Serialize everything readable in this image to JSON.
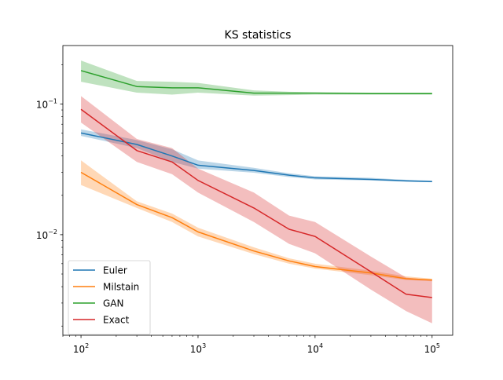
{
  "chart_data": {
    "type": "line",
    "title": "KS statistics",
    "xlabel": "",
    "ylabel": "",
    "xscale": "log",
    "yscale": "log",
    "xlim": [
      70,
      150000
    ],
    "ylim": [
      0.0017,
      0.28
    ],
    "grid": false,
    "legend_position": "lower-left",
    "x_ticks": [
      {
        "value": 100,
        "base": "10",
        "exp": "2"
      },
      {
        "value": 1000,
        "base": "10",
        "exp": "3"
      },
      {
        "value": 10000,
        "base": "10",
        "exp": "4"
      },
      {
        "value": 100000,
        "base": "10",
        "exp": "5"
      }
    ],
    "y_ticks": [
      {
        "value": 0.01,
        "base": "10",
        "exp": "−2"
      },
      {
        "value": 0.1,
        "base": "10",
        "exp": "−1"
      }
    ],
    "series": [
      {
        "name": "Euler",
        "color": "#1f77b4",
        "x": [
          100,
          300,
          600,
          1000,
          3000,
          6000,
          10000,
          30000,
          60000,
          100000
        ],
        "y": [
          0.06,
          0.049,
          0.04,
          0.034,
          0.031,
          0.0285,
          0.0272,
          0.0265,
          0.0258,
          0.0255
        ],
        "lower": [
          0.057,
          0.046,
          0.036,
          0.032,
          0.0298,
          0.0276,
          0.0265,
          0.026,
          0.0254,
          0.0252
        ],
        "upper": [
          0.064,
          0.053,
          0.045,
          0.037,
          0.0325,
          0.0295,
          0.028,
          0.0272,
          0.0263,
          0.0259
        ]
      },
      {
        "name": "Milstain",
        "color": "#ff7f0e",
        "x": [
          100,
          300,
          600,
          1000,
          3000,
          6000,
          10000,
          30000,
          60000,
          100000
        ],
        "y": [
          0.03,
          0.017,
          0.0135,
          0.0105,
          0.0075,
          0.0063,
          0.0057,
          0.0051,
          0.0046,
          0.0045
        ],
        "lower": [
          0.024,
          0.016,
          0.0125,
          0.0097,
          0.0071,
          0.006,
          0.0055,
          0.0049,
          0.0045,
          0.0044
        ],
        "upper": [
          0.037,
          0.018,
          0.0145,
          0.0113,
          0.008,
          0.0066,
          0.006,
          0.0053,
          0.0048,
          0.0046
        ]
      },
      {
        "name": "GAN",
        "color": "#2ca02c",
        "x": [
          100,
          300,
          600,
          1000,
          3000,
          6000,
          10000,
          30000,
          60000,
          100000
        ],
        "y": [
          0.18,
          0.136,
          0.133,
          0.133,
          0.121,
          0.121,
          0.121,
          0.12,
          0.12,
          0.12
        ],
        "lower": [
          0.148,
          0.122,
          0.118,
          0.122,
          0.116,
          0.117,
          0.118,
          0.118,
          0.118,
          0.118
        ],
        "upper": [
          0.215,
          0.15,
          0.148,
          0.145,
          0.127,
          0.124,
          0.123,
          0.122,
          0.122,
          0.122
        ]
      },
      {
        "name": "Exact",
        "color": "#d62728",
        "x": [
          100,
          300,
          600,
          1000,
          3000,
          6000,
          10000,
          30000,
          60000,
          100000
        ],
        "y": [
          0.091,
          0.044,
          0.036,
          0.026,
          0.016,
          0.011,
          0.0097,
          0.0052,
          0.0035,
          0.0033
        ],
        "lower": [
          0.072,
          0.036,
          0.029,
          0.021,
          0.0125,
          0.0085,
          0.0072,
          0.0038,
          0.0026,
          0.0021
        ],
        "upper": [
          0.115,
          0.054,
          0.046,
          0.032,
          0.021,
          0.014,
          0.0125,
          0.0068,
          0.0047,
          0.0045
        ]
      }
    ]
  }
}
